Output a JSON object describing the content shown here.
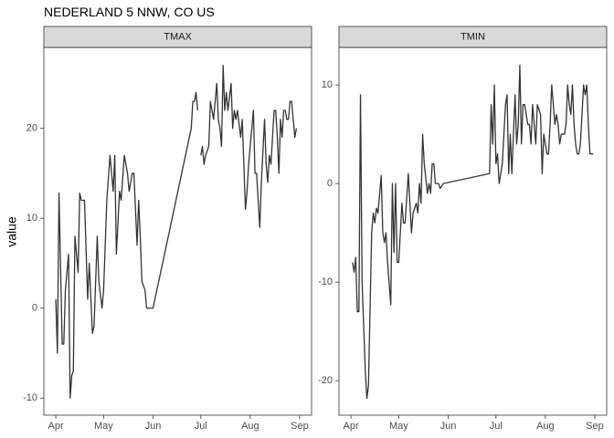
{
  "title": "NEDERLAND 5 NNW, CO US",
  "y_label": "value",
  "chart_data": [
    {
      "type": "line",
      "title": "TMAX",
      "color": "#333333",
      "x": [
        0,
        1,
        2,
        4,
        5,
        6,
        8,
        9,
        10,
        11,
        12,
        14,
        15,
        16,
        18,
        20,
        21,
        23,
        24,
        26,
        27,
        29,
        30,
        32,
        34,
        36,
        37,
        38,
        40,
        41,
        43,
        45,
        46,
        48,
        49,
        51,
        52,
        53,
        54,
        56,
        57,
        59,
        61,
        85,
        86,
        87,
        88,
        89,
        90,
        91,
        92,
        93,
        94,
        96,
        97,
        98,
        99,
        101,
        102,
        103,
        104,
        105,
        106,
        107,
        108,
        110,
        111,
        112,
        113,
        114,
        116,
        117,
        119,
        120,
        121,
        123,
        124,
        125,
        126,
        128,
        129,
        131,
        132,
        133,
        134,
        135,
        137,
        138,
        139,
        140,
        141,
        142,
        143,
        144,
        145,
        146,
        147,
        148,
        149,
        150,
        151
      ],
      "values": [
        1,
        -5,
        12.8,
        -4,
        -4,
        2,
        6,
        -10,
        -7.5,
        -7,
        8,
        4,
        12.8,
        12,
        12,
        1,
        5,
        -2.8,
        -2,
        8,
        3,
        0,
        2,
        12,
        17,
        13,
        17,
        6,
        13,
        12,
        17,
        15,
        13,
        15,
        15,
        7,
        12,
        8,
        3,
        2,
        0,
        0,
        0,
        20,
        23,
        23,
        24,
        22,
        null,
        17,
        18,
        16,
        17,
        18,
        23,
        22,
        21,
        25,
        21,
        20,
        18,
        27,
        22,
        24,
        22,
        25,
        20,
        22,
        21,
        22,
        19,
        21,
        11,
        13,
        16,
        20,
        22,
        15,
        15,
        9,
        14,
        21,
        16,
        14,
        17,
        16,
        22,
        22,
        19,
        15,
        21,
        19,
        22,
        22,
        21,
        21,
        23,
        23,
        21,
        19,
        20
      ],
      "xlim": [
        -7.5,
        160.5
      ],
      "xticks": [
        {
          "value": 0,
          "label": "Apr"
        },
        {
          "value": 30,
          "label": "May"
        },
        {
          "value": 61,
          "label": "Jun"
        },
        {
          "value": 91,
          "label": "Jul"
        },
        {
          "value": 122,
          "label": "Aug"
        },
        {
          "value": 153,
          "label": "Sep"
        }
      ],
      "ylim": [
        -11.9,
        29.0
      ],
      "yticks": [
        -10,
        0,
        10,
        20
      ]
    },
    {
      "type": "line",
      "title": "TMIN",
      "color": "#333333",
      "x": [
        1,
        2,
        3,
        4,
        5,
        6,
        7,
        9,
        10,
        11,
        13,
        14,
        15,
        16,
        17,
        19,
        20,
        21,
        22,
        23,
        25,
        26,
        27,
        28,
        29,
        30,
        32,
        33,
        34,
        36,
        37,
        38,
        39,
        41,
        42,
        43,
        44,
        45,
        46,
        48,
        49,
        50,
        51,
        52,
        53,
        55,
        56,
        58,
        87,
        88,
        89,
        90,
        91,
        92,
        93,
        95,
        96,
        97,
        98,
        99,
        100,
        101,
        103,
        104,
        105,
        106,
        107,
        108,
        109,
        111,
        112,
        113,
        114,
        115,
        116,
        117,
        119,
        120,
        121,
        122,
        123,
        124,
        125,
        126,
        128,
        129,
        130,
        131,
        132,
        134,
        135,
        136,
        137,
        138,
        139,
        140,
        141,
        142,
        143,
        144,
        146,
        147,
        148,
        149,
        150,
        152
      ],
      "values": [
        -8,
        -9,
        -7.5,
        -13,
        -13,
        9,
        -10,
        -19,
        -21.8,
        -20.5,
        -5,
        -3,
        -4,
        -2.5,
        -3,
        0.8,
        -5,
        -6,
        -5,
        -8,
        -12.3,
        0,
        -7,
        0,
        -8,
        -8,
        -2,
        -4,
        -4,
        1,
        -2,
        -5,
        -3,
        -2,
        -3,
        0,
        -2,
        5,
        2,
        -1,
        0,
        -1,
        2,
        2,
        0,
        0,
        -0.5,
        0,
        1,
        8,
        4,
        10,
        2,
        3,
        0,
        2,
        5,
        8,
        9,
        1,
        5,
        1,
        9,
        4,
        6,
        12,
        4,
        8,
        8,
        6,
        6,
        4,
        8,
        6,
        4,
        8,
        7,
        1,
        5,
        4,
        3,
        3,
        6,
        10,
        6,
        7,
        6,
        4,
        5,
        5,
        6,
        10,
        8,
        7,
        10,
        6,
        4,
        3,
        3,
        4,
        10,
        9,
        10,
        6,
        3,
        3
      ],
      "xlim": [
        -7.5,
        160.5
      ],
      "xticks": [
        {
          "value": 0,
          "label": "Apr"
        },
        {
          "value": 30,
          "label": "May"
        },
        {
          "value": 61,
          "label": "Jun"
        },
        {
          "value": 91,
          "label": "Jul"
        },
        {
          "value": 122,
          "label": "Aug"
        },
        {
          "value": 153,
          "label": "Sep"
        }
      ],
      "ylim": [
        -23.5,
        13.8
      ],
      "yticks": [
        -20,
        -10,
        0,
        10
      ]
    }
  ]
}
